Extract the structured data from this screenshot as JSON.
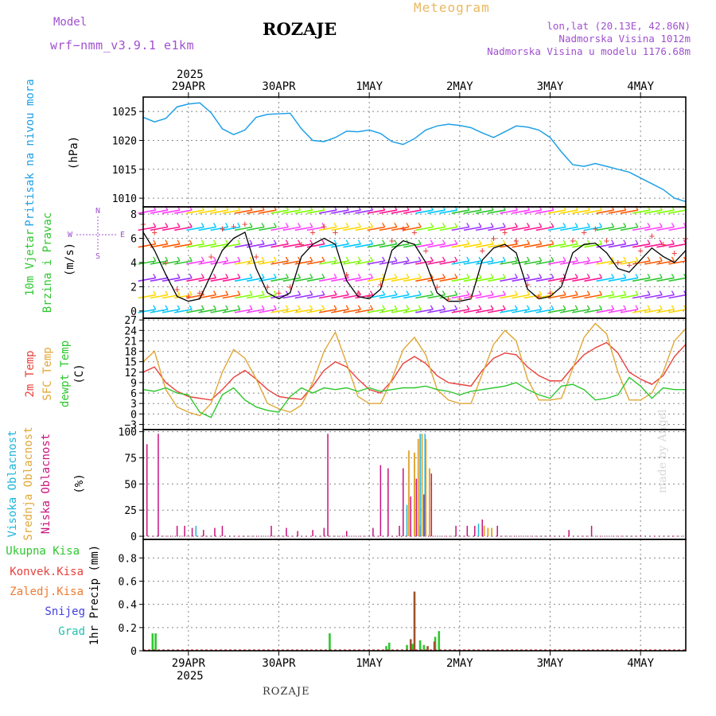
{
  "header": {
    "model_label": "Model",
    "model_name": "wrf−nmm_v3.9.1  e1km",
    "station": "ROZAJE",
    "meteogram": "Meteogram",
    "lonlat": "lon,lat (20.13E, 42.86N)",
    "elevation": "Nadmorska Visina 1012m",
    "model_elevation": "Nadmorska Visina u modelu 1176.68m",
    "year_top": "2025",
    "year_bottom": "2025",
    "footer_station": "ROZAJE",
    "watermark": "made by Angel"
  },
  "colors": {
    "pressure": "#1ea0e6",
    "t2m": "#e8413c",
    "sfc": "#e0a838",
    "dewpt": "#2ec72e",
    "wind_speed": "#000000",
    "gust": "#e8413c",
    "high_cloud": "#1fb5d8",
    "mid_cloud": "#e0a838",
    "low_cloud": "#c8147e",
    "total_precip": "#2ec72e",
    "conv_precip": "#e8413c",
    "frozen_precip": "#f07a30",
    "snow": "#4040e0",
    "graupel": "#22c0b0"
  },
  "chart_data": [
    {
      "type": "line",
      "panel": "pressure",
      "ylabel_1": "Pritisak na nivou mora",
      "ylabel_2": "(hPa)",
      "unit": "hPa",
      "ylim": [
        1008.5,
        1027.5
      ],
      "yticks": [
        "1010",
        "1015",
        "1020",
        "1025"
      ],
      "xticks": [
        "29APR",
        "30APR",
        "1MAY",
        "2MAY",
        "3MAY",
        "4MAY"
      ],
      "x_hours": [
        0,
        3,
        6,
        9,
        12,
        15,
        18,
        21,
        24,
        27,
        30,
        33,
        36,
        39,
        42,
        45,
        48,
        51,
        54,
        57,
        60,
        63,
        66,
        69,
        72,
        75,
        78,
        81,
        84,
        87,
        90,
        93,
        96,
        99,
        102,
        105,
        108,
        111,
        114,
        117,
        120,
        123,
        126,
        129,
        132,
        135,
        138,
        141,
        144
      ],
      "series": [
        {
          "values": [
            1024.0,
            1023.2,
            1023.8,
            1025.8,
            1026.3,
            1026.5,
            1024.8,
            1022.0,
            1021.0,
            1021.8,
            1024.0,
            1024.5,
            1024.6,
            1024.7,
            1022.0,
            1020.0,
            1019.8,
            1020.5,
            1021.6,
            1021.5,
            1021.8,
            1021.2,
            1019.8,
            1019.3,
            1020.3,
            1021.8,
            1022.5,
            1022.8,
            1022.6,
            1022.2,
            1021.3,
            1020.5,
            1021.5,
            1022.5,
            1022.3,
            1021.8,
            1020.5,
            1018.0,
            1015.8,
            1015.5,
            1016.0,
            1015.5,
            1015.0,
            1014.5,
            1013.5,
            1012.5,
            1011.5,
            1010.0,
            1009.4
          ]
        }
      ]
    },
    {
      "type": "line",
      "panel": "wind",
      "ylabel_1": "10m Vjetar",
      "ylabel_2": "Brzina i Pravac",
      "ylabel_3": "(m/s)",
      "compass": [
        "N",
        "S",
        "W",
        "E"
      ],
      "ylim": [
        -0.6,
        8.6
      ],
      "yticks": [
        "0",
        "2",
        "4",
        "6",
        "8"
      ],
      "x_hours": [
        0,
        3,
        6,
        9,
        12,
        15,
        18,
        21,
        24,
        27,
        30,
        33,
        36,
        39,
        42,
        45,
        48,
        51,
        54,
        57,
        60,
        63,
        66,
        69,
        72,
        75,
        78,
        81,
        84,
        87,
        90,
        93,
        96,
        99,
        102,
        105,
        108,
        111,
        114,
        117,
        120,
        123,
        126,
        129,
        132,
        135,
        138,
        141,
        144
      ],
      "series": [
        {
          "values": [
            6.5,
            5.0,
            3.0,
            1.2,
            0.8,
            1.0,
            3.0,
            5.0,
            6.0,
            6.5,
            3.5,
            1.5,
            1.0,
            1.5,
            4.5,
            5.5,
            6.0,
            5.5,
            2.5,
            1.2,
            1.0,
            1.8,
            5.0,
            5.8,
            5.5,
            4.0,
            1.5,
            0.8,
            0.8,
            1.0,
            4.2,
            5.2,
            5.5,
            4.8,
            1.8,
            1.0,
            1.2,
            2.0,
            4.8,
            5.5,
            5.6,
            4.8,
            3.5,
            3.2,
            4.2,
            5.2,
            4.5,
            4.0,
            5.0
          ]
        },
        {
          "values": [
            7.2,
            6.5,
            4.0,
            1.8,
            1.2,
            1.5,
            4.5,
            6.8,
            7.0,
            7.2,
            4.5,
            2.0,
            1.5,
            2.0,
            5.5,
            6.5,
            7.0,
            6.5,
            3.0,
            1.5,
            1.2,
            2.2,
            5.8,
            6.8,
            6.5,
            5.0,
            2.0,
            1.0,
            1.0,
            1.2,
            5.0,
            6.0,
            6.5,
            5.8,
            2.2,
            1.2,
            1.5,
            2.5,
            5.8,
            6.5,
            6.8,
            5.8,
            4.0,
            3.8,
            5.0,
            6.2,
            5.5,
            4.8,
            6.0
          ]
        }
      ]
    },
    {
      "type": "line",
      "panel": "temperature",
      "ylabel_1": "2m Temp",
      "ylabel_2": "SFC Temp",
      "ylabel_3": "dewpt Temp",
      "ylabel_4": "(C)",
      "ylim": [
        -4.5,
        27.5
      ],
      "yticks": [
        "−3",
        "0",
        "3",
        "6",
        "9",
        "12",
        "15",
        "18",
        "21",
        "24",
        "27"
      ],
      "x_hours": [
        0,
        3,
        6,
        9,
        12,
        15,
        18,
        21,
        24,
        27,
        30,
        33,
        36,
        39,
        42,
        45,
        48,
        51,
        54,
        57,
        60,
        63,
        66,
        69,
        72,
        75,
        78,
        81,
        84,
        87,
        90,
        93,
        96,
        99,
        102,
        105,
        108,
        111,
        114,
        117,
        120,
        123,
        126,
        129,
        132,
        135,
        138,
        141,
        144
      ],
      "series": [
        {
          "name": "2m Temp",
          "values": [
            12.0,
            13.5,
            9.0,
            6.5,
            5.0,
            4.5,
            4.0,
            7.0,
            10.5,
            12.5,
            10.0,
            7.0,
            5.0,
            4.5,
            4.2,
            8.0,
            12.5,
            15.0,
            13.5,
            10.0,
            7.0,
            6.0,
            9.5,
            14.5,
            16.5,
            14.5,
            11.0,
            9.0,
            8.5,
            8.0,
            12.5,
            16.0,
            17.5,
            17.0,
            13.5,
            11.0,
            9.5,
            9.5,
            13.5,
            17.0,
            19.0,
            20.5,
            17.5,
            12.0,
            10.0,
            8.5,
            11.0,
            16.5,
            20.0
          ]
        },
        {
          "name": "SFC Temp",
          "values": [
            15.0,
            18.0,
            7.0,
            2.0,
            0.5,
            -0.5,
            3.0,
            12.0,
            18.5,
            16.0,
            10.0,
            3.0,
            1.5,
            0.5,
            2.5,
            9.0,
            18.0,
            23.5,
            14.5,
            5.0,
            3.0,
            3.0,
            10.0,
            18.5,
            22.0,
            17.0,
            7.0,
            4.0,
            3.0,
            3.0,
            11.5,
            20.0,
            24.0,
            21.0,
            10.0,
            4.0,
            4.0,
            4.5,
            13.0,
            22.0,
            26.0,
            23.0,
            12.0,
            4.0,
            4.0,
            6.0,
            12.0,
            21.0,
            24.5
          ]
        },
        {
          "name": "dewpt Temp",
          "values": [
            7.0,
            6.5,
            7.5,
            6.0,
            5.5,
            0.5,
            -1.0,
            5.5,
            7.5,
            4.0,
            2.0,
            1.0,
            0.5,
            5.0,
            7.5,
            6.0,
            7.5,
            7.0,
            7.5,
            6.5,
            7.5,
            6.5,
            7.0,
            7.5,
            7.5,
            8.0,
            7.0,
            6.5,
            5.5,
            6.5,
            7.0,
            7.5,
            8.0,
            9.0,
            7.0,
            5.5,
            4.5,
            8.0,
            8.5,
            7.0,
            4.0,
            4.5,
            5.5,
            10.5,
            8.0,
            4.5,
            7.5,
            7.0,
            7.0
          ]
        }
      ]
    },
    {
      "type": "bar",
      "panel": "cloud",
      "ylabel_1": "Visoka Oblacnost",
      "ylabel_2": "Srednja Oblacnost",
      "ylabel_3": "Niska Oblacnost",
      "ylabel_4": "(%)",
      "ylim": [
        -3,
        102
      ],
      "yticks": [
        "0",
        "25",
        "50",
        "75",
        "100"
      ],
      "series": [
        {
          "name": "Niska Oblacnost",
          "x_hours": [
            1,
            4,
            9,
            11,
            13,
            16,
            19,
            21,
            34,
            38,
            41,
            45,
            48,
            49,
            54,
            61,
            63,
            65,
            68,
            69,
            71,
            72.5,
            73.5,
            74.5,
            76.5,
            83,
            86,
            88,
            90,
            94,
            113,
            119
          ],
          "values": [
            88,
            98,
            10,
            10,
            8,
            6,
            8,
            10,
            10,
            8,
            5,
            6,
            8,
            98,
            5,
            8,
            68,
            65,
            10,
            65,
            38,
            55,
            10,
            40,
            60,
            10,
            10,
            10,
            16,
            10,
            6,
            10
          ]
        },
        {
          "name": "Srednja Oblacnost",
          "x_hours": [
            70.5,
            72,
            73,
            74,
            75,
            76,
            90.5,
            91.5,
            92.5
          ],
          "values": [
            82,
            80,
            93,
            98,
            93,
            65,
            10,
            8,
            8
          ]
        },
        {
          "name": "Visoka Oblacnost",
          "x_hours": [
            14,
            70,
            73.5,
            74.8,
            89
          ],
          "values": [
            10,
            30,
            98,
            98,
            12
          ]
        }
      ]
    },
    {
      "type": "bar",
      "panel": "precip",
      "ylabel_1": "1hr Precip (mm)",
      "legend": [
        "Ukupna  Kisa",
        "Konvek.Kisa",
        "Zaledj.Kisa",
        "Snijeg",
        "Grad"
      ],
      "ylim": [
        0,
        0.96
      ],
      "yticks": [
        "0",
        "0.2",
        "0.4",
        "0.6",
        "0.8"
      ],
      "series": [
        {
          "name": "Ukupna  Kisa",
          "x_hours": [
            2.5,
            3.3,
            49.5,
            64.5,
            65.3,
            70.0,
            71.5,
            73.5,
            74.5,
            77.5,
            78.5
          ],
          "values": [
            0.15,
            0.15,
            0.15,
            0.04,
            0.07,
            0.05,
            0.06,
            0.09,
            0.05,
            0.12,
            0.17
          ]
        },
        {
          "name": "Konvek.Kisa",
          "x_hours": [
            71.0,
            72.0,
            75.5,
            77.3
          ],
          "values": [
            0.1,
            0.51,
            0.04,
            0.08
          ]
        },
        {
          "name": "Zaledj.Kisa",
          "x_hours": [],
          "values": []
        },
        {
          "name": "Snijeg",
          "x_hours": [],
          "values": []
        },
        {
          "name": "Grad",
          "x_hours": [],
          "values": []
        }
      ]
    }
  ]
}
